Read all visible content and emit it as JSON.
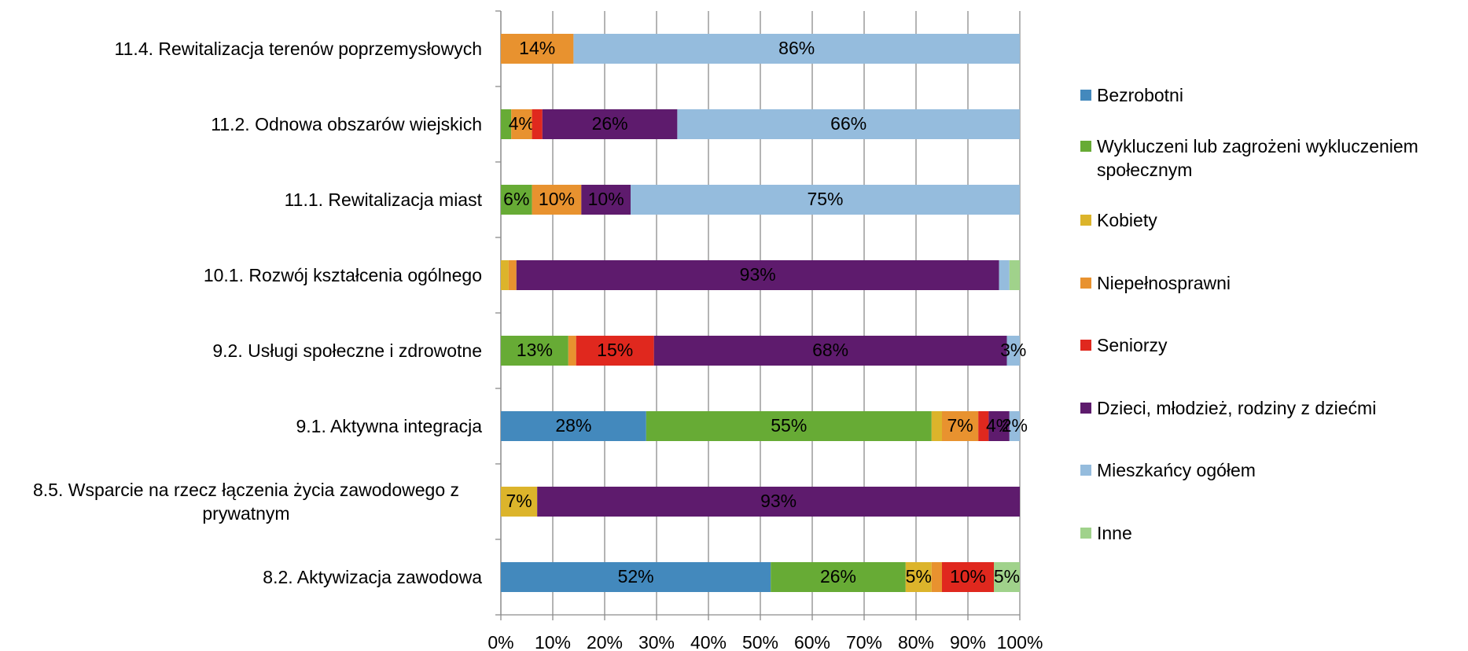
{
  "chart_data": {
    "type": "stacked_barh",
    "categories": [
      "11.4. Rewitalizacja terenów poprzemysłowych",
      "11.2. Odnowa obszarów wiejskich",
      "11.1. Rewitalizacja miast",
      "10.1. Rozwój kształcenia ogólnego",
      "9.2. Usługi społeczne i zdrowotne",
      "9.1. Aktywna integracja",
      "8.5. Wsparcie na rzecz łączenia życia zawodowego z prywatnym",
      "8.2. Aktywizacja zawodowa"
    ],
    "series": [
      {
        "name": "Bezrobotni",
        "color": "#4389bd",
        "values": [
          0,
          0,
          0,
          0,
          0,
          28,
          0,
          52
        ],
        "value_labels": [
          null,
          null,
          null,
          null,
          null,
          "28%",
          null,
          "52%"
        ]
      },
      {
        "name": "Wykluczeni lub zagrożeni wykluczeniem społecznym",
        "color": "#67ab35",
        "values": [
          0,
          2,
          6,
          0,
          13,
          55,
          0,
          26
        ],
        "value_labels": [
          null,
          null,
          "6%",
          null,
          "13%",
          "55%",
          null,
          "26%"
        ]
      },
      {
        "name": "Kobiety",
        "color": "#dcb42b",
        "values": [
          0,
          0,
          0,
          1.5,
          0,
          2,
          7,
          5
        ],
        "value_labels": [
          null,
          null,
          null,
          null,
          null,
          null,
          "7%",
          "5%"
        ]
      },
      {
        "name": "Niepełnosprawni",
        "color": "#e8922f",
        "values": [
          14,
          4,
          9.5,
          1.5,
          1.5,
          7,
          0,
          2
        ],
        "value_labels": [
          "14%",
          "4%",
          "10%",
          null,
          null,
          "7%",
          null,
          null
        ]
      },
      {
        "name": "Seniorzy",
        "color": "#e0281e",
        "values": [
          0,
          2,
          0,
          0,
          15,
          2,
          0,
          10
        ],
        "value_labels": [
          null,
          null,
          null,
          null,
          "15%",
          null,
          null,
          "10%"
        ]
      },
      {
        "name": "Dzieci, młodzież, rodziny z dziećmi",
        "color": "#5e1b6d",
        "values": [
          0,
          26,
          9.5,
          93,
          68,
          4,
          93,
          0
        ],
        "value_labels": [
          null,
          "26%",
          "10%",
          "93%",
          "68%",
          "4%",
          "93%",
          null
        ]
      },
      {
        "name": "Mieszkańcy ogółem",
        "color": "#95bcdd",
        "values": [
          86,
          66,
          75,
          2,
          2.5,
          2,
          0,
          0
        ],
        "value_labels": [
          "86%",
          "66%",
          "75%",
          null,
          "3%",
          "2%",
          null,
          null
        ]
      },
      {
        "name": "Inne",
        "color": "#a0d28b",
        "values": [
          0,
          0,
          0,
          2,
          0,
          0,
          0,
          5
        ],
        "value_labels": [
          null,
          null,
          null,
          null,
          null,
          null,
          null,
          "5%"
        ]
      }
    ],
    "xlim": [
      0,
      100
    ],
    "xticks": [
      {
        "value": 0,
        "label": "0%"
      },
      {
        "value": 10,
        "label": "10%"
      },
      {
        "value": 20,
        "label": "20%"
      },
      {
        "value": 30,
        "label": "30%"
      },
      {
        "value": 40,
        "label": "40%"
      },
      {
        "value": 50,
        "label": "50%"
      },
      {
        "value": 60,
        "label": "60%"
      },
      {
        "value": 70,
        "label": "70%"
      },
      {
        "value": 80,
        "label": "80%"
      },
      {
        "value": 90,
        "label": "90%"
      },
      {
        "value": 100,
        "label": "100%"
      }
    ],
    "grid": true,
    "legend": "right"
  }
}
